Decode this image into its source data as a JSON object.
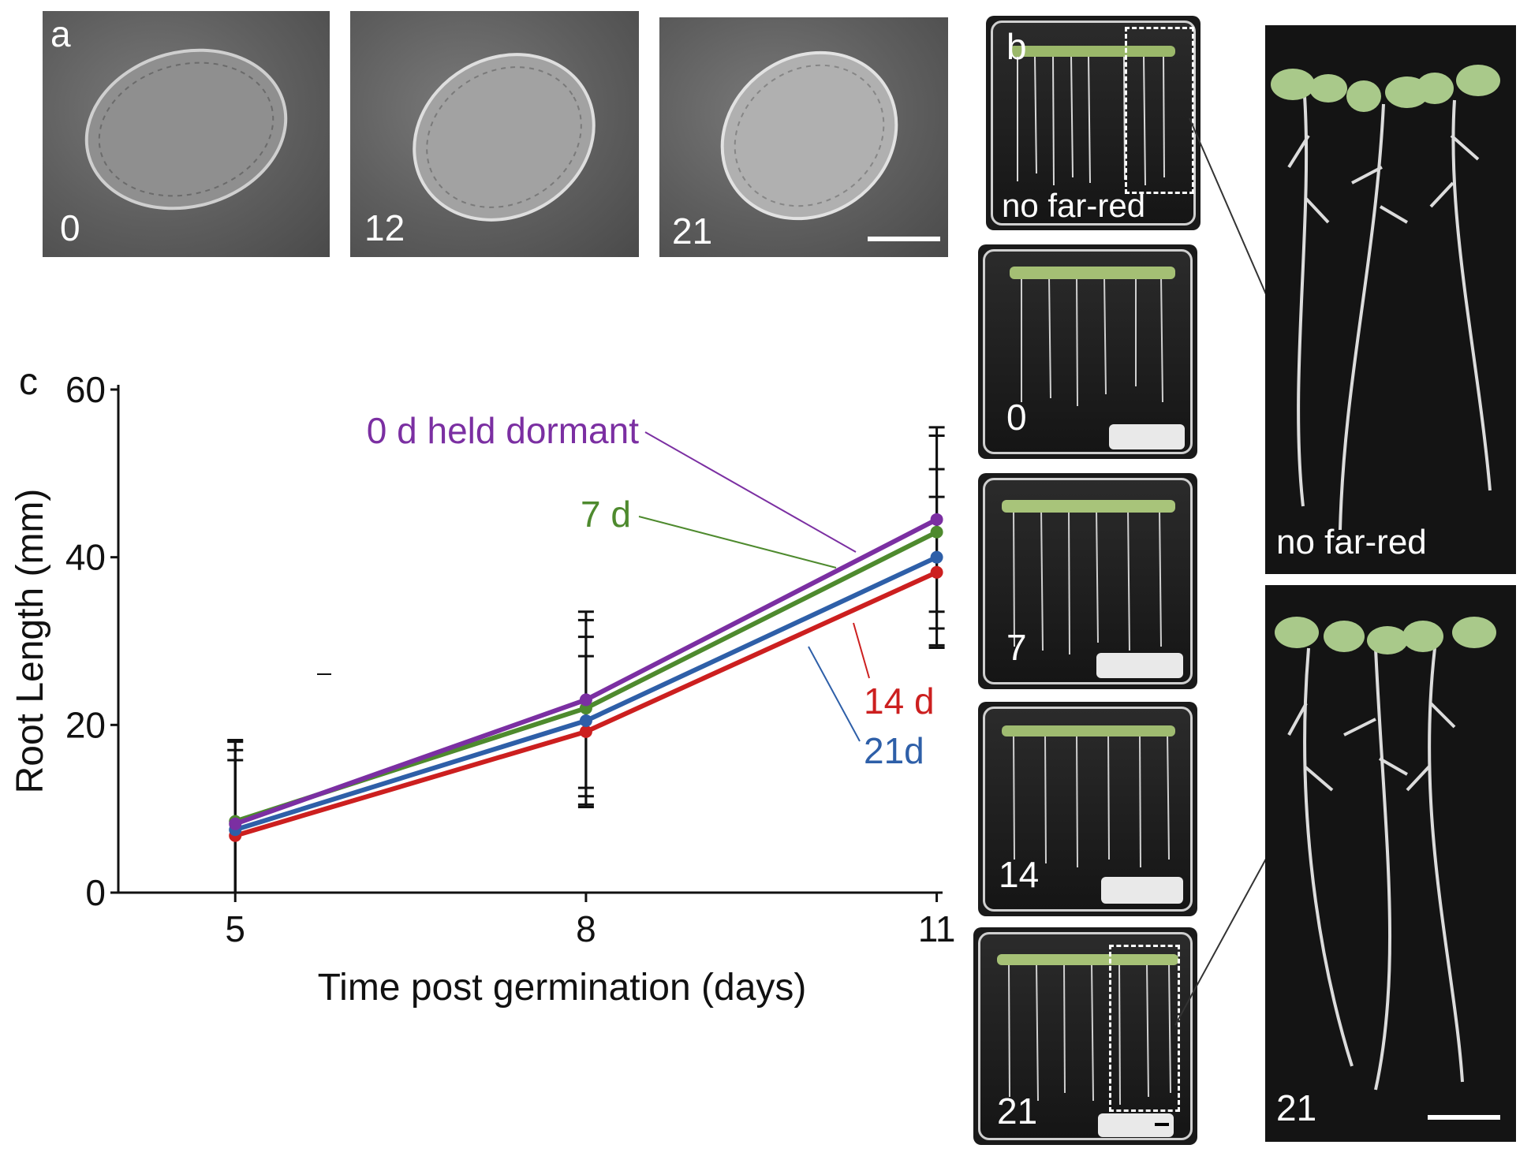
{
  "panel_a": {
    "letter": "a",
    "images": [
      {
        "label": "0"
      },
      {
        "label": "12"
      },
      {
        "label": "21"
      }
    ]
  },
  "panel_b": {
    "letter": "b",
    "plates": [
      {
        "label": "no far-red"
      },
      {
        "label": "0"
      },
      {
        "label": "7"
      },
      {
        "label": "14"
      },
      {
        "label": "21"
      }
    ],
    "zooms": [
      {
        "label": "no far-red"
      },
      {
        "label": "21"
      }
    ]
  },
  "chart_data": {
    "panel_letter": "c",
    "type": "line",
    "xlabel": "Time post germination (days)",
    "ylabel": "Root Length (mm)",
    "x": [
      5,
      8,
      11
    ],
    "x_ticks": [
      "5",
      "8",
      "11"
    ],
    "y_ticks": [
      "0",
      "20",
      "40",
      "60"
    ],
    "ylim": [
      0,
      60
    ],
    "series": [
      {
        "name": "0 d held dormant",
        "color": "#7b2fa2",
        "values": [
          8.2,
          23.0,
          44.5
        ],
        "err": [
          10.0,
          10.5,
          11.0
        ]
      },
      {
        "name": "7 d",
        "color": "#4e8a2e",
        "values": [
          8.5,
          22.0,
          43.0
        ],
        "err": [
          9.5,
          10.5,
          11.5
        ]
      },
      {
        "name": "21d",
        "color": "#2e5fa8",
        "values": [
          7.5,
          20.5,
          40.0
        ],
        "err": [
          9.5,
          10.0,
          10.5
        ]
      },
      {
        "name": "14 d",
        "color": "#cc1f1f",
        "values": [
          6.8,
          19.2,
          38.2
        ],
        "err": [
          9.0,
          9.0,
          9.0
        ]
      }
    ]
  }
}
